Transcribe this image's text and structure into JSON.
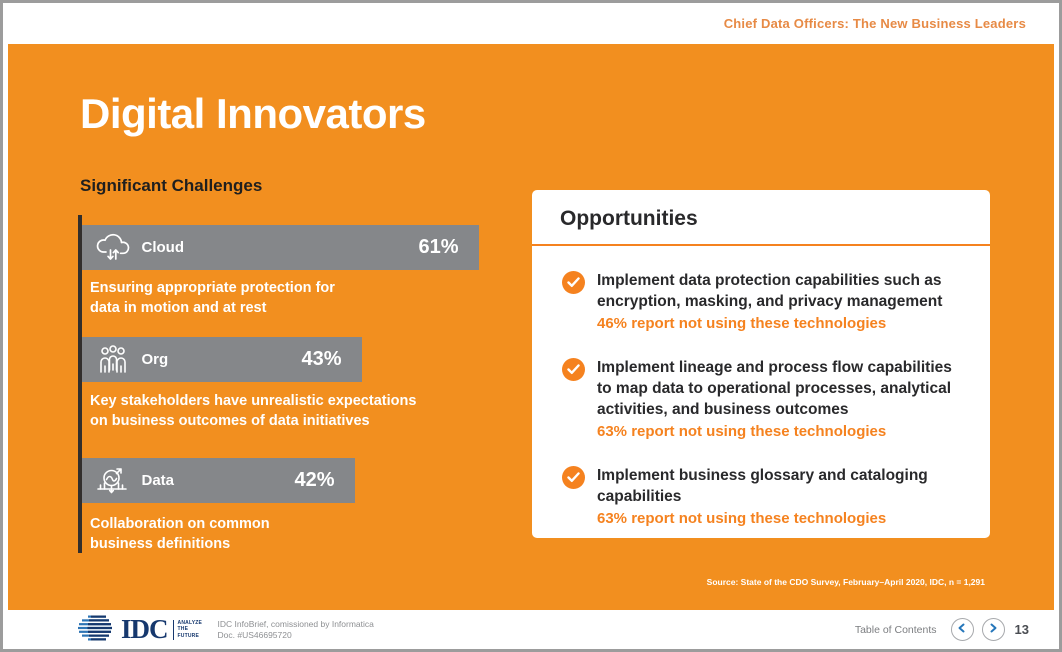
{
  "header": {
    "title": "Chief Data Officers: The New Business Leaders"
  },
  "main": {
    "title": "Digital Innovators",
    "challenges": {
      "heading": "Significant Challenges",
      "items": [
        {
          "icon": "cloud-icon",
          "label": "Cloud",
          "value": "61%",
          "desc_line1": "Ensuring appropriate protection for",
          "desc_line2": "data in motion and at rest"
        },
        {
          "icon": "org-icon",
          "label": "Org",
          "value": "43%",
          "desc_line1": "Key stakeholders have unrealistic expectations",
          "desc_line2": "on business outcomes of data initiatives"
        },
        {
          "icon": "data-icon",
          "label": "Data",
          "value": "42%",
          "desc_line1": "Collaboration on common",
          "desc_line2": "business definitions"
        }
      ]
    },
    "opportunities": {
      "heading": "Opportunities",
      "check_icon": "check-icon",
      "items": [
        {
          "text": "Implement data protection capabilities such as encryption, masking, and privacy management",
          "stat": "46% report not using these technologies"
        },
        {
          "text": "Implement lineage and process flow capabilities to map data to operational processes, analytical activities, and business outcomes",
          "stat": "63% report not using these technologies"
        },
        {
          "text": "Implement business glossary and cataloging capabilities",
          "stat": "63% report not using these technologies"
        }
      ]
    },
    "source": "Source: State of the CDO Survey, February–April 2020, IDC, n = 1,291"
  },
  "footer": {
    "logo_text": "IDC",
    "logo_tagline": "ANALYZE THE FUTURE",
    "logo_globe_icon": "idc-globe-icon",
    "info_line1": "IDC InfoBrief, comissioned by Informatica",
    "info_line2": "Doc. #US46695720",
    "toc_label": "Table of Contents",
    "prev_icon": "chevron-left-icon",
    "next_icon": "chevron-right-icon",
    "page_number": "13"
  },
  "chart_data": {
    "type": "bar",
    "orientation": "horizontal",
    "title": "Significant Challenges",
    "categories": [
      "Cloud",
      "Org",
      "Data"
    ],
    "values": [
      61,
      43,
      42
    ],
    "value_labels": [
      "61%",
      "43%",
      "42%"
    ],
    "xlim": [
      0,
      65
    ],
    "bar_color": "#85878A",
    "annotations": [
      "Ensuring appropriate protection for data in motion and at rest",
      "Key stakeholders have unrealistic expectations on business outcomes of data initiatives",
      "Collaboration on common business definitions"
    ]
  },
  "colors": {
    "background_orange": "#F28F1F",
    "accent_orange": "#F5821F",
    "bar_gray": "#85878A",
    "idc_navy": "#16386E",
    "link_blue": "#2576BA"
  }
}
